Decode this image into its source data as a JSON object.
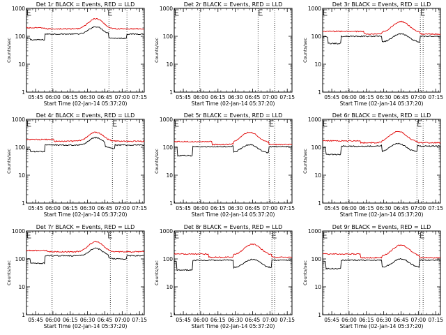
{
  "colors": {
    "events": "#000000",
    "lld": "#e00000",
    "background": "#ffffff"
  },
  "ylabel": "Counts/sec",
  "xlabel": "Start Time (02-Jan-14 05:37:20)",
  "y_ticks": [
    {
      "value": 1,
      "label": "1"
    },
    {
      "value": 10,
      "label": "10"
    },
    {
      "value": 100,
      "label": "100"
    },
    {
      "value": 1000,
      "label": "1000"
    }
  ],
  "x_ticks": [
    {
      "value": 0.1315,
      "label": "05:45"
    },
    {
      "value": 0.3815,
      "label": "06:00"
    },
    {
      "value": 0.6315,
      "label": "06:15"
    },
    {
      "value": 0.8815,
      "label": "06:30"
    },
    {
      "value": 1.1315,
      "label": "06:45"
    },
    {
      "value": 1.3815,
      "label": "07:00"
    },
    {
      "value": 1.6315,
      "label": "07:15"
    }
  ],
  "chart_data": [
    {
      "type": "line",
      "title": "Det 1r BLACK = Events, RED = LLD",
      "has_data": true,
      "xlim": [
        0,
        1.7
      ],
      "ylim": [
        1,
        1000
      ],
      "marker_e1": 0.0,
      "marker_e2": 1.17,
      "vlines": [
        0.37,
        1.19,
        1.45
      ],
      "events": {
        "base": 120,
        "steps": [
          [
            0.0,
            0.06,
            85
          ],
          [
            0.06,
            0.26,
            75
          ],
          [
            1.19,
            1.45,
            85
          ]
        ],
        "hump_center": 1.0,
        "hump_width": 0.12,
        "hump_factor": 1.85
      },
      "lld": {
        "base": 185,
        "steps": [
          [
            0.0,
            0.26,
            200
          ]
        ],
        "hump_center": 1.0,
        "hump_width": 0.13,
        "hump_factor": 2.3
      }
    },
    {
      "type": "line",
      "title": "Det 2r BLACK = Events, RED = LLD",
      "has_data": false,
      "xlim": [
        0,
        1.7
      ],
      "ylim": [
        1,
        1000
      ],
      "marker_e1": 0.0,
      "marker_e2": 1.21,
      "vlines": [
        0.37,
        1.21,
        1.45
      ]
    },
    {
      "type": "line",
      "title": "Det 3r BLACK = Events, RED = LLD",
      "has_data": true,
      "xlim": [
        0,
        1.7
      ],
      "ylim": [
        1,
        1000
      ],
      "marker_e1": 0.0,
      "marker_e2": 1.41,
      "vlines": [
        0.37,
        1.41,
        1.45
      ],
      "events": {
        "base": 100,
        "steps": [
          [
            0.0,
            0.08,
            95
          ],
          [
            0.08,
            0.26,
            55
          ],
          [
            0.86,
            1.41,
            62
          ]
        ],
        "hump_center": 1.13,
        "hump_width": 0.14,
        "hump_factor": 2.0
      },
      "lld": {
        "base": 120,
        "steps": [
          [
            0.0,
            0.6,
            150
          ],
          [
            0.86,
            1.41,
            140
          ]
        ],
        "hump_center": 1.13,
        "hump_width": 0.14,
        "hump_factor": 2.4
      }
    },
    {
      "type": "line",
      "title": "Det 4r BLACK = Events, RED = LLD",
      "has_data": true,
      "xlim": [
        0,
        1.7
      ],
      "ylim": [
        1,
        1000
      ],
      "marker_e1": 0.0,
      "marker_e2": 1.24,
      "vlines": [
        0.37,
        1.24,
        1.45
      ],
      "events": {
        "base": 120,
        "steps": [
          [
            0.0,
            0.06,
            85
          ],
          [
            0.06,
            0.26,
            70
          ],
          [
            1.14,
            1.28,
            90
          ]
        ],
        "hump_center": 1.0,
        "hump_width": 0.12,
        "hump_factor": 1.85
      },
      "lld": {
        "base": 165,
        "steps": [
          [
            0.0,
            0.4,
            190
          ]
        ],
        "hump_center": 1.0,
        "hump_width": 0.13,
        "hump_factor": 2.1
      }
    },
    {
      "type": "line",
      "title": "Det 5r BLACK = Events, RED = LLD",
      "has_data": true,
      "xlim": [
        0,
        1.7
      ],
      "ylim": [
        1,
        1000
      ],
      "marker_e1": 0.0,
      "marker_e2": 1.37,
      "vlines": [
        0.37,
        1.37,
        1.45
      ],
      "events": {
        "base": 105,
        "steps": [
          [
            0.0,
            0.05,
            100
          ],
          [
            0.05,
            0.26,
            50
          ],
          [
            0.86,
            1.37,
            62
          ]
        ],
        "hump_center": 1.09,
        "hump_width": 0.14,
        "hump_factor": 2.0
      },
      "lld": {
        "base": 125,
        "steps": [
          [
            0.0,
            0.55,
            160
          ],
          [
            0.86,
            1.37,
            150
          ]
        ],
        "hump_center": 1.09,
        "hump_width": 0.14,
        "hump_factor": 2.3
      }
    },
    {
      "type": "line",
      "title": "Det 6r BLACK = Events, RED = LLD",
      "has_data": true,
      "xlim": [
        0,
        1.7
      ],
      "ylim": [
        1,
        1000
      ],
      "marker_e1": 0.0,
      "marker_e2": 1.36,
      "vlines": [
        0.37,
        1.36,
        1.45
      ],
      "events": {
        "base": 110,
        "steps": [
          [
            0.0,
            0.05,
            100
          ],
          [
            0.05,
            0.26,
            55
          ],
          [
            0.86,
            1.36,
            68
          ]
        ],
        "hump_center": 1.09,
        "hump_width": 0.14,
        "hump_factor": 2.0
      },
      "lld": {
        "base": 145,
        "steps": [
          [
            0.0,
            0.55,
            170
          ],
          [
            0.86,
            1.36,
            160
          ]
        ],
        "hump_center": 1.09,
        "hump_width": 0.14,
        "hump_factor": 2.3
      }
    },
    {
      "type": "line",
      "title": "Det 7r BLACK = Events, RED = LLD",
      "has_data": true,
      "xlim": [
        0,
        1.7
      ],
      "ylim": [
        1,
        1000
      ],
      "marker_e1": 0.0,
      "marker_e2": 1.17,
      "vlines": [
        0.37,
        1.21,
        1.45
      ],
      "events": {
        "base": 130,
        "steps": [
          [
            0.0,
            0.06,
            100
          ],
          [
            0.06,
            0.26,
            70
          ],
          [
            1.19,
            1.45,
            100
          ]
        ],
        "hump_center": 1.0,
        "hump_width": 0.12,
        "hump_factor": 1.85
      },
      "lld": {
        "base": 180,
        "steps": [
          [
            0.0,
            0.3,
            200
          ]
        ],
        "hump_center": 1.0,
        "hump_width": 0.13,
        "hump_factor": 2.3
      }
    },
    {
      "type": "line",
      "title": "Det 8r BLACK = Events, RED = LLD",
      "has_data": true,
      "xlim": [
        0,
        1.7
      ],
      "ylim": [
        1,
        1000
      ],
      "marker_e1": 0.0,
      "marker_e2": 1.41,
      "vlines": [
        0.37,
        1.41,
        1.45
      ],
      "events": {
        "base": 90,
        "steps": [
          [
            0.0,
            0.04,
            80
          ],
          [
            0.04,
            0.26,
            40
          ],
          [
            0.86,
            1.41,
            48
          ]
        ],
        "hump_center": 1.13,
        "hump_width": 0.14,
        "hump_factor": 2.0
      },
      "lld": {
        "base": 115,
        "steps": [
          [
            0.0,
            0.5,
            150
          ],
          [
            0.86,
            1.41,
            140
          ]
        ],
        "hump_center": 1.13,
        "hump_width": 0.14,
        "hump_factor": 2.4
      }
    },
    {
      "type": "line",
      "title": "Det 9r BLACK = Events, RED = LLD",
      "has_data": true,
      "xlim": [
        0,
        1.7
      ],
      "ylim": [
        1,
        1000
      ],
      "marker_e1": 0.0,
      "marker_e2": 1.4,
      "vlines": [
        0.37,
        1.4,
        1.45
      ],
      "events": {
        "base": 90,
        "steps": [
          [
            0.0,
            0.05,
            80
          ],
          [
            0.05,
            0.26,
            45
          ],
          [
            0.86,
            1.4,
            50
          ]
        ],
        "hump_center": 1.13,
        "hump_width": 0.14,
        "hump_factor": 2.0
      },
      "lld": {
        "base": 110,
        "steps": [
          [
            0.0,
            0.55,
            150
          ],
          [
            0.86,
            1.4,
            130
          ]
        ],
        "hump_center": 1.13,
        "hump_width": 0.14,
        "hump_factor": 2.4
      }
    }
  ]
}
